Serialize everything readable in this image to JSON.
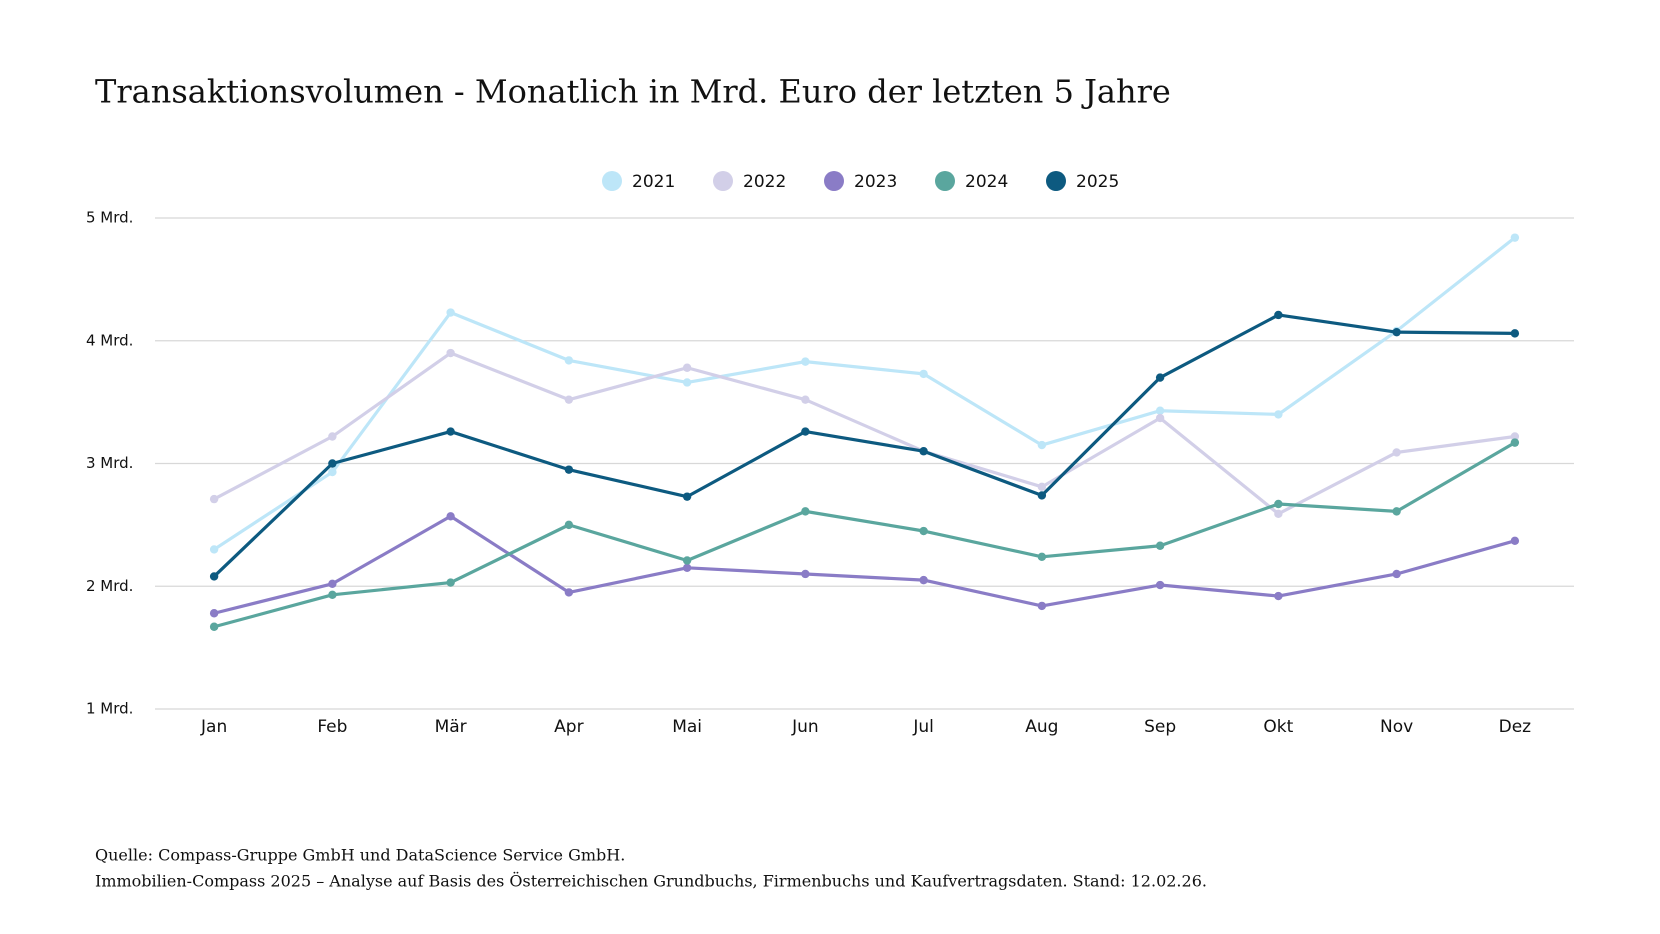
{
  "chart_data": {
    "type": "line",
    "title": "Transaktionsvolumen - Monatlich in Mrd. Euro der letzten 5 Jahre",
    "categories": [
      "Jan",
      "Feb",
      "Mär",
      "Apr",
      "Mai",
      "Jun",
      "Jul",
      "Aug",
      "Sep",
      "Okt",
      "Nov",
      "Dez"
    ],
    "series": [
      {
        "name": "2021",
        "color": "#bde6f8",
        "values": [
          2.3,
          2.93,
          4.23,
          3.84,
          3.66,
          3.83,
          3.73,
          3.15,
          3.43,
          3.4,
          4.08,
          4.84
        ]
      },
      {
        "name": "2022",
        "color": "#d2cfe8",
        "values": [
          2.71,
          3.22,
          3.9,
          3.52,
          3.78,
          3.52,
          3.1,
          2.81,
          3.37,
          2.59,
          3.09,
          3.22
        ]
      },
      {
        "name": "2023",
        "color": "#8a7cc6",
        "values": [
          1.78,
          2.02,
          2.57,
          1.95,
          2.15,
          2.1,
          2.05,
          1.84,
          2.01,
          1.92,
          2.1,
          2.37
        ]
      },
      {
        "name": "2024",
        "color": "#5aa69e",
        "values": [
          1.67,
          1.93,
          2.03,
          2.5,
          2.21,
          2.61,
          2.45,
          2.24,
          2.33,
          2.67,
          2.61,
          3.17
        ]
      },
      {
        "name": "2025",
        "color": "#0d5a80",
        "values": [
          2.08,
          3.0,
          3.26,
          2.95,
          2.73,
          3.26,
          3.1,
          2.74,
          3.7,
          4.21,
          4.07,
          4.06
        ]
      }
    ],
    "ylim": [
      1,
      5
    ],
    "yticks": [
      {
        "value": 1,
        "label": "1 Mrd."
      },
      {
        "value": 2,
        "label": "2 Mrd."
      },
      {
        "value": 3,
        "label": "3 Mrd."
      },
      {
        "value": 4,
        "label": "4 Mrd."
      },
      {
        "value": 5,
        "label": "5 Mrd."
      }
    ],
    "grid": true,
    "legend": "top",
    "notes": [
      "Quelle: Compass-Gruppe GmbH und DataScience Service GmbH.",
      "Immobilien-Compass 2025 – Analyse auf Basis des Österreichischen Grundbuchs, Firmenbuchs und Kaufvertragsdaten. Stand: 12.02.26."
    ]
  }
}
